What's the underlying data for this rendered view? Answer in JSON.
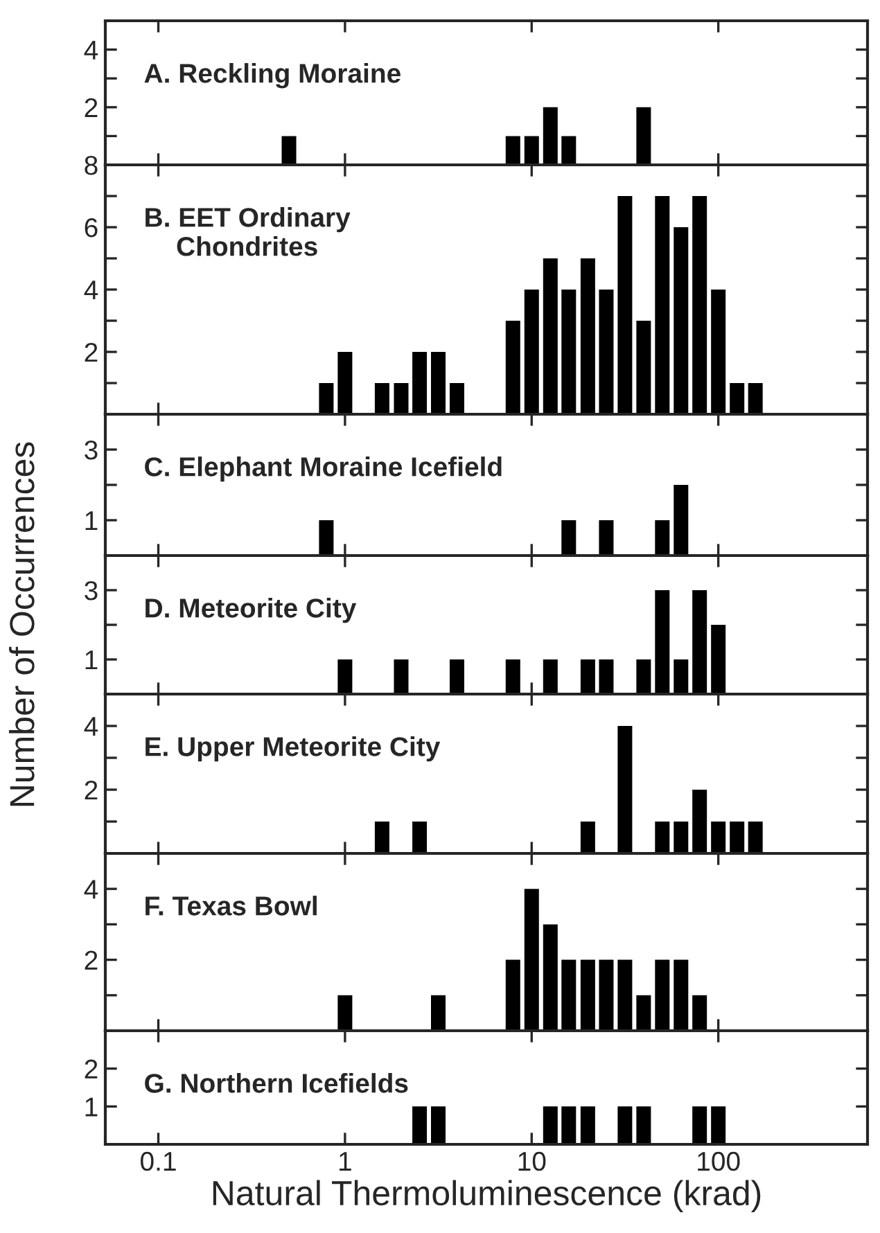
{
  "chart_data": [
    {
      "type": "bar",
      "title": "A. Reckling Moraine",
      "log": "x",
      "color": "#000000",
      "tick_labels": "y",
      "xlim": [
        0.052,
        630
      ],
      "xticks": [
        0.1,
        1,
        10,
        100
      ],
      "ylim": [
        0,
        5
      ],
      "yticks": [
        {
          "value": 1,
          "label": null
        },
        2,
        {
          "value": 3,
          "label": null
        },
        4
      ],
      "x": [
        0.501,
        7.94,
        10,
        12.6,
        15.8,
        39.8
      ],
      "values": [
        1,
        1,
        1,
        2,
        1,
        2
      ]
    },
    {
      "type": "bar",
      "title": "B. EET Ordinary\nChondrites",
      "log": "x",
      "color": "#000000",
      "tick_labels": "y",
      "xlim": [
        0.052,
        630
      ],
      "xticks": [
        0.1,
        1,
        10,
        100
      ],
      "ylim": [
        0,
        8
      ],
      "yticks": [
        {
          "value": 1,
          "label": null
        },
        2,
        {
          "value": 3,
          "label": null
        },
        4,
        {
          "value": 5,
          "label": null
        },
        6,
        {
          "value": 7,
          "label": null
        },
        8
      ],
      "x": [
        0.794,
        1,
        1.58,
        2.0,
        2.51,
        3.16,
        3.98,
        7.94,
        10,
        12.6,
        15.8,
        20.0,
        25.1,
        31.6,
        39.8,
        50.1,
        63.1,
        79.4,
        100,
        126,
        158
      ],
      "values": [
        1,
        2,
        1,
        1,
        2,
        2,
        1,
        3,
        4,
        5,
        4,
        5,
        4,
        7,
        3,
        7,
        6,
        7,
        4,
        1,
        1
      ]
    },
    {
      "type": "bar",
      "title": "C. Elephant Moraine Icefield",
      "log": "x",
      "color": "#000000",
      "tick_labels": "y",
      "xlim": [
        0.052,
        630
      ],
      "xticks": [
        0.1,
        1,
        10,
        100
      ],
      "ylim": [
        0,
        4
      ],
      "yticks": [
        1,
        {
          "value": 2,
          "label": null
        },
        3
      ],
      "x": [
        0.794,
        15.8,
        25.1,
        50.1,
        63.1
      ],
      "values": [
        1,
        1,
        1,
        1,
        2
      ]
    },
    {
      "type": "bar",
      "title": "D. Meteorite City",
      "ylabel": "Number of Occurrences",
      "log": "x",
      "color": "#000000",
      "tick_labels": "y",
      "xlim": [
        0.052,
        630
      ],
      "xticks": [
        0.1,
        1,
        10,
        100
      ],
      "ylim": [
        0,
        4
      ],
      "yticks": [
        1,
        {
          "value": 2,
          "label": null
        },
        3
      ],
      "x": [
        1,
        2.0,
        3.98,
        7.94,
        12.6,
        20.0,
        25.1,
        39.8,
        50.1,
        63.1,
        79.4,
        100
      ],
      "values": [
        1,
        1,
        1,
        1,
        1,
        1,
        1,
        1,
        3,
        1,
        3,
        2
      ]
    },
    {
      "type": "bar",
      "title": "E. Upper Meteorite City",
      "log": "x",
      "color": "#000000",
      "tick_labels": "y",
      "xlim": [
        0.052,
        630
      ],
      "xticks": [
        0.1,
        1,
        10,
        100
      ],
      "ylim": [
        0,
        5
      ],
      "yticks": [
        {
          "value": 1,
          "label": null
        },
        2,
        {
          "value": 3,
          "label": null
        },
        4
      ],
      "x": [
        1.58,
        2.51,
        20.0,
        31.6,
        50.1,
        63.1,
        79.4,
        100,
        126,
        158
      ],
      "values": [
        1,
        1,
        1,
        4,
        1,
        1,
        2,
        1,
        1,
        1
      ]
    },
    {
      "type": "bar",
      "title": "F. Texas Bowl",
      "log": "x",
      "color": "#000000",
      "tick_labels": "y",
      "xlim": [
        0.052,
        630
      ],
      "xticks": [
        0.1,
        1,
        10,
        100
      ],
      "ylim": [
        0,
        5
      ],
      "yticks": [
        {
          "value": 1,
          "label": null
        },
        2,
        {
          "value": 3,
          "label": null
        },
        4
      ],
      "x": [
        1,
        3.16,
        7.94,
        10,
        12.6,
        15.8,
        20.0,
        25.1,
        31.6,
        39.8,
        50.1,
        63.1,
        79.4
      ],
      "values": [
        1,
        1,
        2,
        4,
        3,
        2,
        2,
        2,
        2,
        1,
        2,
        2,
        1
      ]
    },
    {
      "type": "bar",
      "title": "G. Northern Icefields",
      "xlabel": "Natural Thermoluminescence (krad)",
      "log": "x",
      "color": "#000000",
      "xlim": [
        0.052,
        630
      ],
      "xticks": [
        0.1,
        1,
        10,
        100
      ],
      "ylim": [
        0,
        3
      ],
      "yticks": [
        1,
        2
      ],
      "x": [
        2.51,
        3.16,
        12.6,
        15.8,
        20.0,
        31.6,
        39.8,
        79.4,
        100
      ],
      "values": [
        1,
        1,
        1,
        1,
        1,
        1,
        1,
        1,
        1
      ]
    }
  ]
}
